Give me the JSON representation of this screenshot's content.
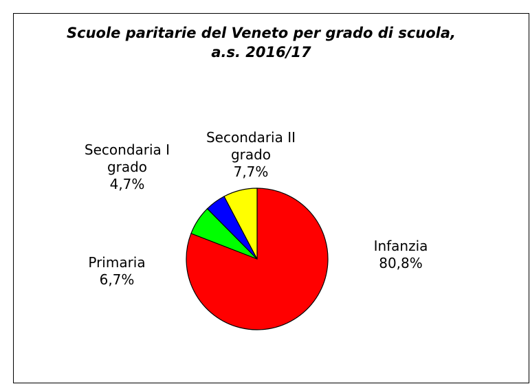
{
  "chart_data": {
    "type": "pie",
    "title": "Scuole paritarie del Veneto per grado di scuola, a.s. 2016/17",
    "categories": [
      "Infanzia",
      "Primaria",
      "Secondaria I grado",
      "Secondaria II grado"
    ],
    "values": [
      80.8,
      6.7,
      4.7,
      7.7
    ],
    "value_labels": [
      "80,8%",
      "6,7%",
      "4,7%",
      "7,7%"
    ],
    "colors": [
      "#ff0000",
      "#00ff00",
      "#0000ff",
      "#ffff00"
    ]
  }
}
